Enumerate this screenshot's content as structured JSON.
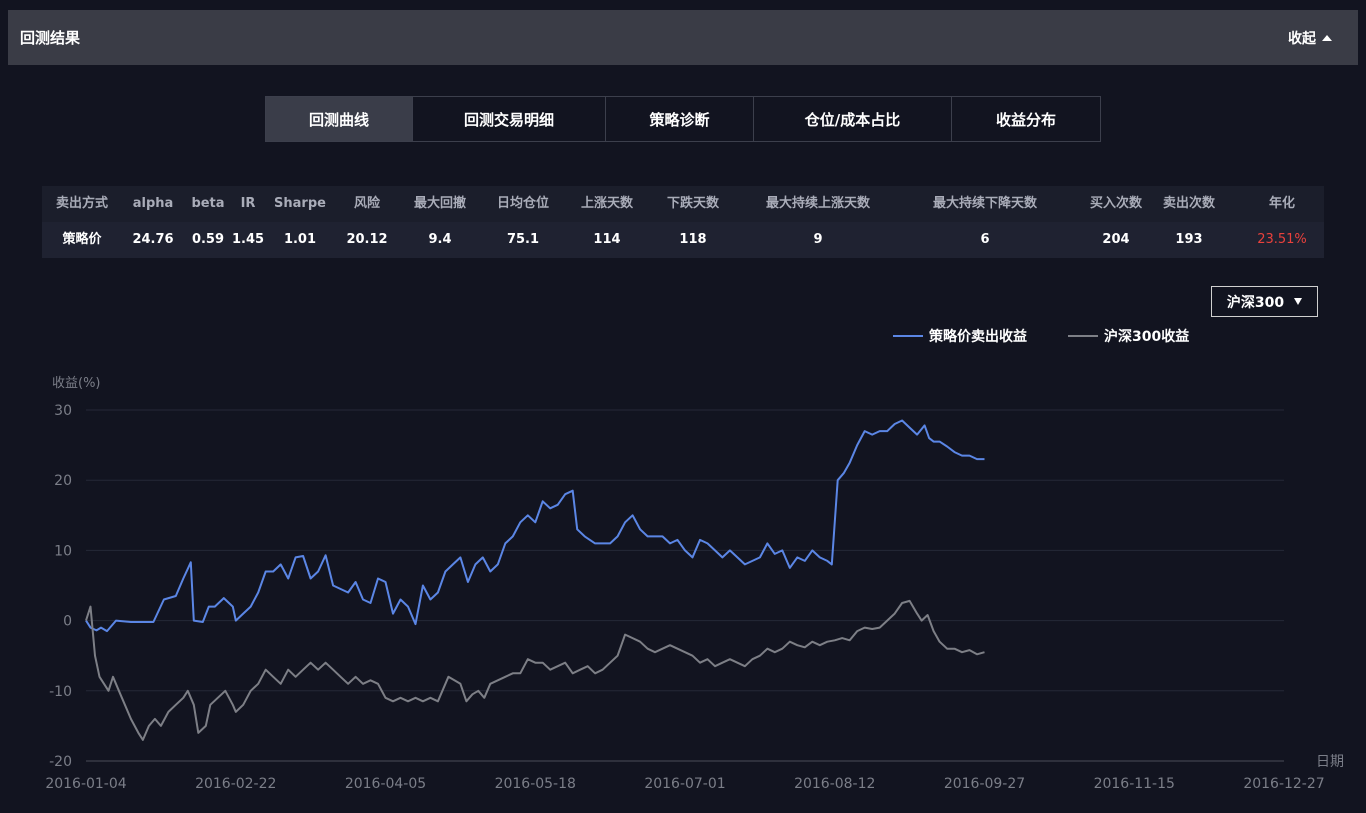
{
  "header": {
    "title": "回测结果",
    "collapse_label": "收起"
  },
  "tabs": [
    {
      "label": "回测曲线",
      "active": true
    },
    {
      "label": "回测交易明细",
      "active": false
    },
    {
      "label": "策略诊断",
      "active": false
    },
    {
      "label": "仓位/成本占比",
      "active": false
    },
    {
      "label": "收益分布",
      "active": false
    }
  ],
  "stats": {
    "headers": [
      "卖出方式",
      "alpha",
      "beta",
      "IR",
      "Sharpe",
      "风险",
      "最大回撤",
      "日均仓位",
      "上涨天数",
      "下跌天数",
      "最大持续上涨天数",
      "最大持续下降天数",
      "买入次数",
      "卖出次数",
      "年化"
    ],
    "values": [
      "策略价",
      "24.76",
      "0.59",
      "1.45",
      "1.01",
      "20.12",
      "9.4",
      "75.1",
      "114",
      "118",
      "9",
      "6",
      "204",
      "193",
      "23.51%"
    ]
  },
  "benchmark_select": {
    "value": "沪深300"
  },
  "colors": {
    "strategy": "#5b86e5",
    "benchmark": "#7d7f86",
    "annual_return": "#e9413c",
    "background": "#121420"
  },
  "chart_data": {
    "type": "line",
    "ylabel": "收益(%)",
    "xlabel": "日期",
    "ylim": [
      -20,
      30
    ],
    "yticks": [
      -20,
      -10,
      0,
      10,
      20,
      30
    ],
    "x_ticks": [
      "2016-01-04",
      "2016-02-22",
      "2016-04-05",
      "2016-05-18",
      "2016-07-01",
      "2016-08-12",
      "2016-09-27",
      "2016-11-15",
      "2016-12-27"
    ],
    "grid": "horizontal",
    "legend": "top-right",
    "series": [
      {
        "name": "策略价卖出收益",
        "color": "#5b86e5",
        "points": [
          [
            0,
            0
          ],
          [
            0.03,
            -1
          ],
          [
            0.07,
            -1.4
          ],
          [
            0.1,
            -1
          ],
          [
            0.14,
            -1.5
          ],
          [
            0.2,
            0
          ],
          [
            0.3,
            -0.2
          ],
          [
            0.45,
            -0.2
          ],
          [
            0.52,
            3
          ],
          [
            0.6,
            3.5
          ],
          [
            0.65,
            6
          ],
          [
            0.7,
            8.3
          ],
          [
            0.72,
            0
          ],
          [
            0.78,
            -0.2
          ],
          [
            0.82,
            2
          ],
          [
            0.86,
            2
          ],
          [
            0.92,
            3.2
          ],
          [
            0.98,
            2
          ],
          [
            1.0,
            0
          ],
          [
            1.05,
            1
          ],
          [
            1.1,
            2
          ],
          [
            1.15,
            4
          ],
          [
            1.2,
            7
          ],
          [
            1.25,
            7
          ],
          [
            1.3,
            8
          ],
          [
            1.35,
            6
          ],
          [
            1.4,
            9
          ],
          [
            1.45,
            9.2
          ],
          [
            1.5,
            6
          ],
          [
            1.55,
            7
          ],
          [
            1.6,
            9.3
          ],
          [
            1.65,
            5
          ],
          [
            1.7,
            4.5
          ],
          [
            1.75,
            4
          ],
          [
            1.8,
            5.5
          ],
          [
            1.85,
            3
          ],
          [
            1.9,
            2.5
          ],
          [
            1.95,
            6
          ],
          [
            2.0,
            5.5
          ],
          [
            2.05,
            1
          ],
          [
            2.1,
            3
          ],
          [
            2.15,
            2
          ],
          [
            2.2,
            -0.5
          ],
          [
            2.25,
            5
          ],
          [
            2.3,
            3
          ],
          [
            2.35,
            4
          ],
          [
            2.4,
            7
          ],
          [
            2.45,
            8
          ],
          [
            2.5,
            9
          ],
          [
            2.55,
            5.5
          ],
          [
            2.6,
            8
          ],
          [
            2.65,
            9
          ],
          [
            2.7,
            7
          ],
          [
            2.75,
            8
          ],
          [
            2.8,
            11
          ],
          [
            2.85,
            12
          ],
          [
            2.9,
            14
          ],
          [
            2.95,
            15
          ],
          [
            3.0,
            14
          ],
          [
            3.05,
            17
          ],
          [
            3.1,
            16
          ],
          [
            3.15,
            16.5
          ],
          [
            3.2,
            18
          ],
          [
            3.25,
            18.5
          ],
          [
            3.28,
            13
          ],
          [
            3.33,
            12
          ],
          [
            3.4,
            11
          ],
          [
            3.5,
            11
          ],
          [
            3.55,
            12
          ],
          [
            3.6,
            14
          ],
          [
            3.65,
            15
          ],
          [
            3.7,
            13
          ],
          [
            3.75,
            12
          ],
          [
            3.85,
            12
          ],
          [
            3.9,
            11
          ],
          [
            3.95,
            11.5
          ],
          [
            4.0,
            10
          ],
          [
            4.05,
            9
          ],
          [
            4.1,
            11.5
          ],
          [
            4.15,
            11
          ],
          [
            4.2,
            10
          ],
          [
            4.25,
            9
          ],
          [
            4.3,
            10
          ],
          [
            4.35,
            9
          ],
          [
            4.4,
            8
          ],
          [
            4.45,
            8.5
          ],
          [
            4.5,
            9
          ],
          [
            4.55,
            11
          ],
          [
            4.6,
            9.5
          ],
          [
            4.65,
            10
          ],
          [
            4.7,
            7.5
          ],
          [
            4.75,
            9
          ],
          [
            4.8,
            8.5
          ],
          [
            4.85,
            10
          ],
          [
            4.9,
            9
          ],
          [
            4.95,
            8.5
          ],
          [
            4.98,
            8
          ],
          [
            5.02,
            20
          ],
          [
            5.06,
            21
          ],
          [
            5.1,
            22.5
          ],
          [
            5.15,
            25
          ],
          [
            5.2,
            27
          ],
          [
            5.25,
            26.5
          ],
          [
            5.3,
            27
          ],
          [
            5.35,
            27
          ],
          [
            5.4,
            28
          ],
          [
            5.45,
            28.5
          ],
          [
            5.5,
            27.5
          ],
          [
            5.55,
            26.5
          ],
          [
            5.6,
            27.8
          ],
          [
            5.63,
            26
          ],
          [
            5.66,
            25.5
          ],
          [
            5.7,
            25.5
          ],
          [
            5.75,
            24.8
          ],
          [
            5.8,
            24
          ],
          [
            5.85,
            23.5
          ],
          [
            5.9,
            23.5
          ],
          [
            5.95,
            23
          ],
          [
            6.0,
            23
          ]
        ]
      },
      {
        "name": "沪深300收益",
        "color": "#7d7f86",
        "points": [
          [
            0,
            0
          ],
          [
            0.03,
            2
          ],
          [
            0.06,
            -5
          ],
          [
            0.09,
            -8
          ],
          [
            0.12,
            -9
          ],
          [
            0.15,
            -10
          ],
          [
            0.18,
            -8
          ],
          [
            0.22,
            -10
          ],
          [
            0.26,
            -12
          ],
          [
            0.3,
            -14
          ],
          [
            0.35,
            -16
          ],
          [
            0.38,
            -17
          ],
          [
            0.42,
            -15
          ],
          [
            0.46,
            -14
          ],
          [
            0.5,
            -15
          ],
          [
            0.55,
            -13
          ],
          [
            0.6,
            -12
          ],
          [
            0.65,
            -11
          ],
          [
            0.68,
            -10
          ],
          [
            0.72,
            -12
          ],
          [
            0.75,
            -16
          ],
          [
            0.8,
            -15
          ],
          [
            0.83,
            -12
          ],
          [
            0.88,
            -11
          ],
          [
            0.93,
            -10
          ],
          [
            0.98,
            -12
          ],
          [
            1.0,
            -13
          ],
          [
            1.05,
            -12
          ],
          [
            1.1,
            -10
          ],
          [
            1.15,
            -9
          ],
          [
            1.2,
            -7
          ],
          [
            1.25,
            -8
          ],
          [
            1.3,
            -9
          ],
          [
            1.35,
            -7
          ],
          [
            1.4,
            -8
          ],
          [
            1.45,
            -7
          ],
          [
            1.5,
            -6
          ],
          [
            1.55,
            -7
          ],
          [
            1.6,
            -6
          ],
          [
            1.65,
            -7
          ],
          [
            1.7,
            -8
          ],
          [
            1.75,
            -9
          ],
          [
            1.8,
            -8
          ],
          [
            1.85,
            -9
          ],
          [
            1.9,
            -8.5
          ],
          [
            1.95,
            -9
          ],
          [
            2.0,
            -11
          ],
          [
            2.05,
            -11.5
          ],
          [
            2.1,
            -11
          ],
          [
            2.15,
            -11.5
          ],
          [
            2.2,
            -11
          ],
          [
            2.25,
            -11.5
          ],
          [
            2.3,
            -11
          ],
          [
            2.35,
            -11.5
          ],
          [
            2.38,
            -10
          ],
          [
            2.42,
            -8
          ],
          [
            2.46,
            -8.5
          ],
          [
            2.5,
            -9
          ],
          [
            2.54,
            -11.5
          ],
          [
            2.58,
            -10.5
          ],
          [
            2.62,
            -10
          ],
          [
            2.66,
            -11
          ],
          [
            2.7,
            -9
          ],
          [
            2.75,
            -8.5
          ],
          [
            2.8,
            -8
          ],
          [
            2.85,
            -7.5
          ],
          [
            2.9,
            -7.5
          ],
          [
            2.95,
            -5.5
          ],
          [
            3.0,
            -6
          ],
          [
            3.05,
            -6
          ],
          [
            3.1,
            -7
          ],
          [
            3.15,
            -6.5
          ],
          [
            3.2,
            -6
          ],
          [
            3.25,
            -7.5
          ],
          [
            3.3,
            -7
          ],
          [
            3.35,
            -6.5
          ],
          [
            3.4,
            -7.5
          ],
          [
            3.45,
            -7
          ],
          [
            3.5,
            -6
          ],
          [
            3.55,
            -5
          ],
          [
            3.6,
            -2
          ],
          [
            3.65,
            -2.5
          ],
          [
            3.7,
            -3
          ],
          [
            3.75,
            -4
          ],
          [
            3.8,
            -4.5
          ],
          [
            3.85,
            -4
          ],
          [
            3.9,
            -3.5
          ],
          [
            3.95,
            -4
          ],
          [
            4.0,
            -4.5
          ],
          [
            4.05,
            -5
          ],
          [
            4.1,
            -6
          ],
          [
            4.15,
            -5.5
          ],
          [
            4.2,
            -6.5
          ],
          [
            4.25,
            -6
          ],
          [
            4.3,
            -5.5
          ],
          [
            4.35,
            -6
          ],
          [
            4.4,
            -6.5
          ],
          [
            4.45,
            -5.5
          ],
          [
            4.5,
            -5
          ],
          [
            4.55,
            -4
          ],
          [
            4.6,
            -4.5
          ],
          [
            4.65,
            -4
          ],
          [
            4.7,
            -3
          ],
          [
            4.75,
            -3.5
          ],
          [
            4.8,
            -3.8
          ],
          [
            4.85,
            -3
          ],
          [
            4.9,
            -3.5
          ],
          [
            4.95,
            -3
          ],
          [
            5.0,
            -2.8
          ],
          [
            5.05,
            -2.5
          ],
          [
            5.1,
            -2.8
          ],
          [
            5.15,
            -1.5
          ],
          [
            5.2,
            -1
          ],
          [
            5.25,
            -1.2
          ],
          [
            5.3,
            -1
          ],
          [
            5.35,
            0
          ],
          [
            5.4,
            1
          ],
          [
            5.45,
            2.5
          ],
          [
            5.5,
            2.8
          ],
          [
            5.55,
            1
          ],
          [
            5.58,
            0
          ],
          [
            5.62,
            0.8
          ],
          [
            5.66,
            -1.5
          ],
          [
            5.7,
            -3
          ],
          [
            5.75,
            -4
          ],
          [
            5.8,
            -4
          ],
          [
            5.85,
            -4.5
          ],
          [
            5.9,
            -4.2
          ],
          [
            5.95,
            -4.8
          ],
          [
            6.0,
            -4.5
          ]
        ]
      }
    ]
  }
}
